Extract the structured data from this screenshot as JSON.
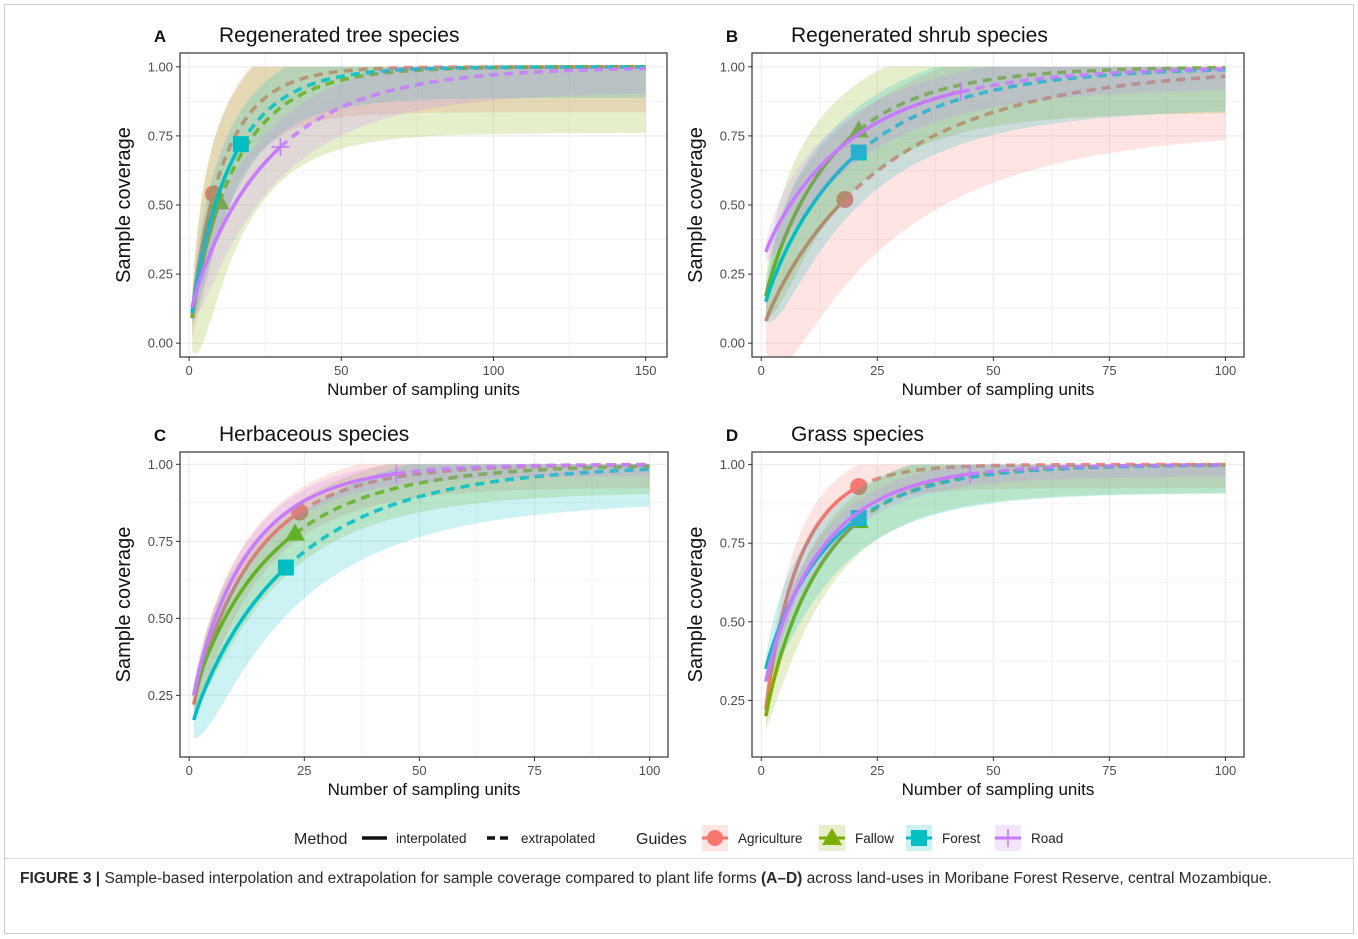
{
  "legend": {
    "method_title": "Method",
    "method_items": [
      "interpolated",
      "extrapolated"
    ],
    "guides_title": "Guides",
    "guides_items": [
      "Agriculture",
      "Fallow",
      "Forest",
      "Road"
    ]
  },
  "colors": {
    "Agriculture": "#f8766d",
    "Fallow": "#7cae00",
    "Forest": "#00bfc4",
    "Road": "#c77cff",
    "panel_border": "#333333",
    "grid": "#ebebeb"
  },
  "caption": {
    "label": "FIGURE 3 |",
    "text_1": " Sample-based interpolation and extrapolation for sample coverage compared to plant life forms ",
    "bold_ref": "(A–D)",
    "text_2": " across land-uses in Moribane Forest Reserve, central Mozambique."
  },
  "chart_data": [
    {
      "panel": "A",
      "type": "line",
      "title": "Regenerated tree species",
      "xlabel": "Number of sampling units",
      "ylabel": "Sample coverage",
      "xlim": [
        -3,
        157
      ],
      "ylim": [
        -0.05,
        1.05
      ],
      "xticks": [
        0,
        50,
        100,
        150
      ],
      "yticks": [
        0.0,
        0.25,
        0.5,
        0.75,
        1.0
      ],
      "ytick_labels": [
        "0.00",
        "0.25",
        "0.50",
        "0.75",
        "1.00"
      ],
      "series": [
        {
          "name": "Agriculture",
          "xmax": 150,
          "obs": [
            8,
            0.54
          ],
          "start": 0.1,
          "ciw": 0.22
        },
        {
          "name": "Fallow",
          "xmax": 150,
          "obs": [
            10,
            0.51
          ],
          "start": 0.09,
          "ciw": 0.32
        },
        {
          "name": "Forest",
          "xmax": 150,
          "obs": [
            17,
            0.72
          ],
          "start": 0.11,
          "ciw": 0.15
        },
        {
          "name": "Road",
          "xmax": 150,
          "obs": [
            30,
            0.71
          ],
          "start": 0.13,
          "ciw": 0.12
        }
      ]
    },
    {
      "panel": "B",
      "type": "line",
      "title": "Regenerated shrub species",
      "xlabel": "Number of sampling units",
      "ylabel": "Sample coverage",
      "xlim": [
        -2,
        104
      ],
      "ylim": [
        -0.05,
        1.05
      ],
      "xticks": [
        0,
        25,
        50,
        75,
        100
      ],
      "yticks": [
        0.0,
        0.25,
        0.5,
        0.75,
        1.0
      ],
      "ytick_labels": [
        "0.00",
        "0.25",
        "0.50",
        "0.75",
        "1.00"
      ],
      "series": [
        {
          "name": "Agriculture",
          "xmax": 100,
          "obs": [
            18,
            0.52
          ],
          "start": 0.08,
          "ciw": 0.3
        },
        {
          "name": "Fallow",
          "xmax": 100,
          "obs": [
            21,
            0.77
          ],
          "start": 0.17,
          "ciw": 0.22
        },
        {
          "name": "Forest",
          "xmax": 100,
          "obs": [
            21,
            0.69
          ],
          "start": 0.15,
          "ciw": 0.2
        },
        {
          "name": "Road",
          "xmax": 100,
          "obs": [
            43,
            0.91
          ],
          "start": 0.33,
          "ciw": 0.1
        }
      ]
    },
    {
      "panel": "C",
      "type": "line",
      "title": "Herbaceous species",
      "xlabel": "Number of sampling units",
      "ylabel": "Sample coverage",
      "xlim": [
        -2,
        104
      ],
      "ylim": [
        0.05,
        1.04
      ],
      "xticks": [
        0,
        25,
        50,
        75,
        100
      ],
      "yticks": [
        0.25,
        0.5,
        0.75,
        1.0
      ],
      "ytick_labels": [
        "0.25",
        "0.50",
        "0.75",
        "1.00"
      ],
      "series": [
        {
          "name": "Agriculture",
          "xmax": 100,
          "obs": [
            24,
            0.845
          ],
          "start": 0.22,
          "ciw": 0.1
        },
        {
          "name": "Fallow",
          "xmax": 100,
          "obs": [
            23,
            0.775
          ],
          "start": 0.25,
          "ciw": 0.12
        },
        {
          "name": "Forest",
          "xmax": 100,
          "obs": [
            21,
            0.665
          ],
          "start": 0.17,
          "ciw": 0.16
        },
        {
          "name": "Road",
          "xmax": 100,
          "obs": [
            45,
            0.97
          ],
          "start": 0.25,
          "ciw": 0.05
        }
      ]
    },
    {
      "panel": "D",
      "type": "line",
      "title": "Grass species",
      "xlabel": "Number of sampling units",
      "ylabel": "Sample coverage",
      "xlim": [
        -2,
        104
      ],
      "ylim": [
        0.07,
        1.04
      ],
      "xticks": [
        0,
        25,
        50,
        75,
        100
      ],
      "yticks": [
        0.25,
        0.5,
        0.75,
        1.0
      ],
      "ytick_labels": [
        "0.25",
        "0.50",
        "0.75",
        "1.00"
      ],
      "series": [
        {
          "name": "Agriculture",
          "xmax": 100,
          "obs": [
            21,
            0.93
          ],
          "start": 0.22,
          "ciw": 0.1
        },
        {
          "name": "Fallow",
          "xmax": 100,
          "obs": [
            21,
            0.82
          ],
          "start": 0.2,
          "ciw": 0.12
        },
        {
          "name": "Forest",
          "xmax": 100,
          "obs": [
            21,
            0.83
          ],
          "start": 0.35,
          "ciw": 0.12
        },
        {
          "name": "Road",
          "xmax": 100,
          "obs": [
            45,
            0.97
          ],
          "start": 0.31,
          "ciw": 0.05
        }
      ]
    }
  ]
}
